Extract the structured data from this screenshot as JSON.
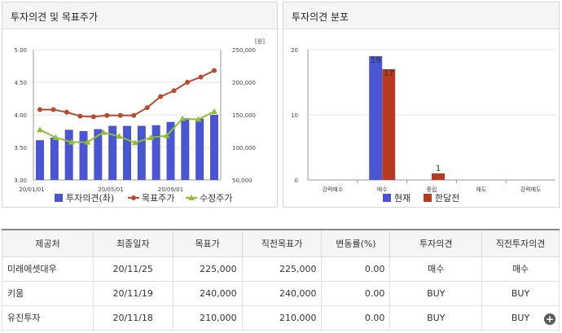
{
  "left_panel": {
    "title": "투자의견 및 목표주가"
  },
  "right_panel": {
    "title": "투자의견 분포"
  },
  "chart_data": [
    {
      "type": "bar+line",
      "unit_label": "[원]",
      "left_axis": {
        "ticks": [
          "5.00",
          "4.50",
          "4.00",
          "3.50",
          "3.00"
        ],
        "ylim": [
          3.0,
          5.0
        ]
      },
      "right_axis": {
        "ticks": [
          "250,000",
          "200,000",
          "150,000",
          "100,000",
          "50,000"
        ],
        "ylim": [
          50000,
          250000
        ]
      },
      "x_ticks": [
        "20/01/01",
        "20/05/01",
        "20/09/01"
      ],
      "series": [
        {
          "name": "투자의견(좌)",
          "kind": "bar",
          "axis": "left",
          "color": "#4a55d3",
          "values": [
            3.61,
            3.65,
            3.77,
            3.75,
            3.78,
            3.83,
            3.83,
            3.83,
            3.84,
            3.89,
            3.94,
            3.94,
            4.0
          ]
        },
        {
          "name": "목표주가",
          "kind": "line",
          "axis": "right",
          "color": "#b84a2e",
          "values": [
            158000,
            158000,
            154000,
            148000,
            147000,
            149000,
            149000,
            149000,
            161000,
            178000,
            187000,
            200000,
            208000,
            218000
          ]
        },
        {
          "name": "수정주가",
          "kind": "line",
          "axis": "right",
          "color": "#8fbf2e",
          "values": [
            127000,
            115000,
            108000,
            108000,
            123000,
            117000,
            107000,
            115000,
            118000,
            144000,
            143000,
            155000
          ]
        }
      ]
    },
    {
      "type": "bar",
      "yticks": [
        "20",
        "10",
        "0"
      ],
      "ylim": [
        0,
        20
      ],
      "categories": [
        "강력매수",
        "매수",
        "중립",
        "매도",
        "강력매도"
      ],
      "series": [
        {
          "name": "현재",
          "color": "#4a55d3",
          "values": [
            0,
            19,
            0,
            0,
            0
          ],
          "labels": [
            "",
            "19",
            "",
            "",
            ""
          ]
        },
        {
          "name": "한달전",
          "color": "#b83a22",
          "values": [
            0,
            17,
            1,
            0,
            0
          ],
          "labels": [
            "",
            "17",
            "1",
            "",
            ""
          ]
        }
      ]
    }
  ],
  "table": {
    "headers": [
      "제공처",
      "최종일자",
      "목표가",
      "직전목표가",
      "변동률(%)",
      "투자의견",
      "직전투자의견"
    ],
    "rows": [
      [
        "미래에셋대우",
        "20/11/25",
        "225,000",
        "225,000",
        "0.00",
        "매수",
        "매수"
      ],
      [
        "키움",
        "20/11/19",
        "240,000",
        "240,000",
        "0.00",
        "BUY",
        "BUY"
      ],
      [
        "유진투자",
        "20/11/18",
        "210,000",
        "210,000",
        "0.00",
        "BUY",
        "BUY"
      ]
    ]
  },
  "icons": {
    "expand": "plus-icon"
  }
}
